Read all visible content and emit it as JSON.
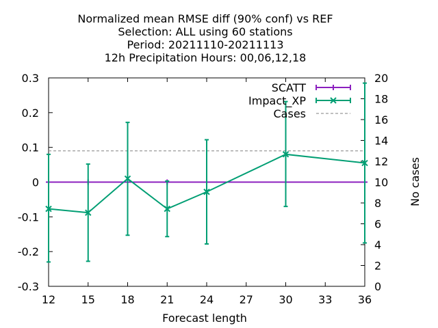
{
  "chart_data": {
    "type": "line",
    "title_lines": [
      "Normalized mean RMSE diff (90% conf) vs REF",
      "Selection: ALL using    60 stations",
      "Period: 20211110-20211113",
      "12h Precipitation   Hours:  00,06,12,18"
    ],
    "xlabel": "Forecast length",
    "ylabel": "",
    "y2label": "No cases",
    "xlim": [
      12,
      36
    ],
    "ylim": [
      -0.3,
      0.3
    ],
    "y2lim": [
      0,
      20
    ],
    "x_ticks": [
      "12",
      "15",
      "18",
      "21",
      "24",
      "27",
      "30",
      "33",
      "36"
    ],
    "y_ticks": [
      "-0.3",
      "-0.2",
      "-0.1",
      "0",
      "0.1",
      "0.2",
      "0.3"
    ],
    "y2_ticks": [
      "0",
      "2",
      "4",
      "6",
      "8",
      "10",
      "12",
      "14",
      "16",
      "18",
      "20"
    ],
    "x_tick_values": [
      12,
      15,
      18,
      21,
      24,
      27,
      30,
      33,
      36
    ],
    "y_tick_values": [
      -0.3,
      -0.2,
      -0.1,
      0,
      0.1,
      0.2,
      0.3
    ],
    "y2_tick_values": [
      0,
      2,
      4,
      6,
      8,
      10,
      12,
      14,
      16,
      18,
      20
    ],
    "legend_position": "top-right",
    "series": [
      {
        "name": "SCATT",
        "color": "#8b1fbf",
        "marker": "plus",
        "x": [
          12,
          15,
          18,
          21,
          24,
          30,
          36
        ],
        "y": [
          0,
          0,
          0,
          0,
          0,
          0,
          0
        ],
        "err_low": [
          0,
          0,
          0,
          0,
          0,
          0,
          0
        ],
        "err_high": [
          0,
          0,
          0,
          0,
          0,
          0,
          0
        ]
      },
      {
        "name": "Impact_XP",
        "color": "#009e73",
        "marker": "x",
        "x": [
          12,
          15,
          18,
          21,
          24,
          30,
          36
        ],
        "y": [
          -0.077,
          -0.088,
          0.01,
          -0.077,
          -0.028,
          0.08,
          0.055
        ],
        "err_low": [
          -0.23,
          -0.228,
          -0.153,
          -0.157,
          -0.178,
          -0.07,
          -0.175
        ],
        "err_high": [
          0.08,
          0.052,
          0.172,
          0.003,
          0.122,
          0.232,
          0.285
        ]
      },
      {
        "name": "Cases",
        "color": "#999999",
        "dash": true,
        "axis": "y2",
        "x": [
          12,
          36
        ],
        "y": [
          13,
          13
        ]
      }
    ]
  }
}
